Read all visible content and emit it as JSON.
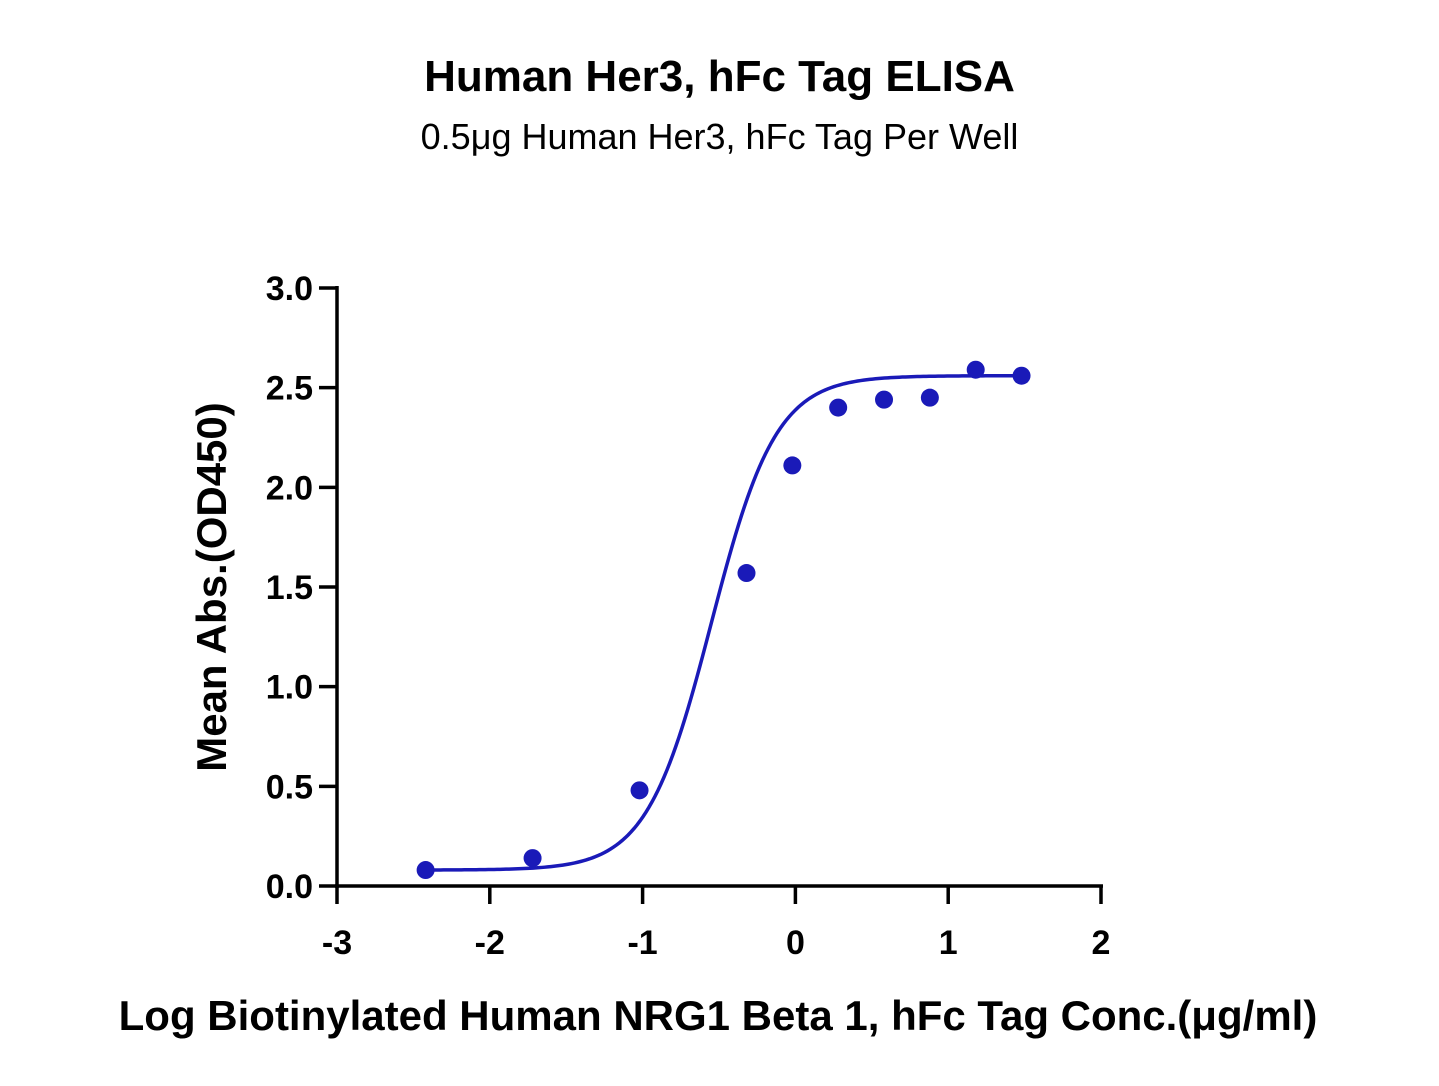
{
  "chart_data": {
    "type": "scatter",
    "title": "Human Her3, hFc Tag ELISA",
    "subtitle": "0.5μg Human Her3, hFc Tag Per Well",
    "xlabel": "Log Biotinylated Human NRG1 Beta 1, hFc Tag Conc.(μg/ml)",
    "ylabel": "Mean Abs.(OD450)",
    "xlim": [
      -3,
      2
    ],
    "ylim": [
      0,
      3.0
    ],
    "x_ticks": [
      "-3",
      "-2",
      "-1",
      "0",
      "1",
      "2"
    ],
    "y_ticks": [
      "0.0",
      "0.5",
      "1.0",
      "1.5",
      "2.0",
      "2.5",
      "3.0"
    ],
    "grid": false,
    "color": "#1a1ab8",
    "series": [
      {
        "x": [
          -2.42,
          -1.72,
          -1.02,
          -0.32,
          -0.02,
          0.28,
          0.58,
          0.88,
          1.18,
          1.48
        ],
        "y": [
          0.08,
          0.14,
          0.48,
          1.57,
          2.11,
          2.4,
          2.44,
          2.45,
          2.59,
          2.56
        ],
        "fit": "four-parameter logistic"
      }
    ]
  }
}
